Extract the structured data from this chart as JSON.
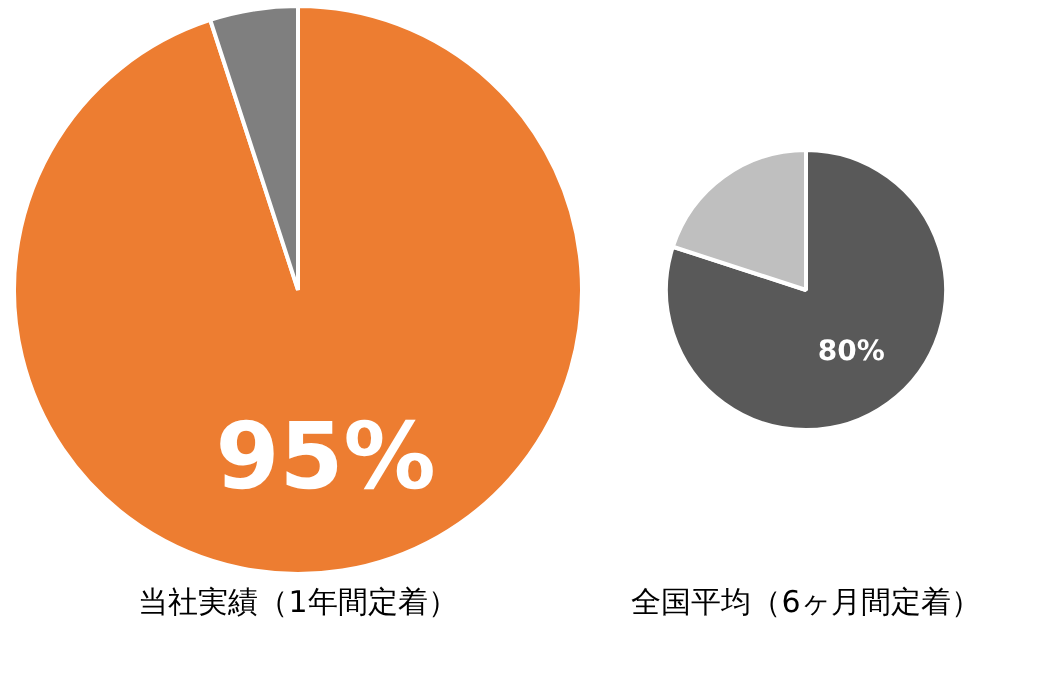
{
  "chart_data": [
    {
      "type": "pie",
      "title": "当社実績（1年間定着）",
      "categories": [
        null,
        null
      ],
      "values": [
        95,
        5
      ],
      "colors": [
        "#ed7d31",
        "#7f7f7f"
      ],
      "value_labels": [
        "95%",
        null
      ],
      "legend": false
    },
    {
      "type": "pie",
      "title": "全国平均（6ヶ月間定着）",
      "categories": [
        null,
        null
      ],
      "values": [
        80,
        20
      ],
      "colors": [
        "#595959",
        "#bfbfbf"
      ],
      "value_labels": [
        "80%",
        null
      ],
      "legend": false
    }
  ]
}
